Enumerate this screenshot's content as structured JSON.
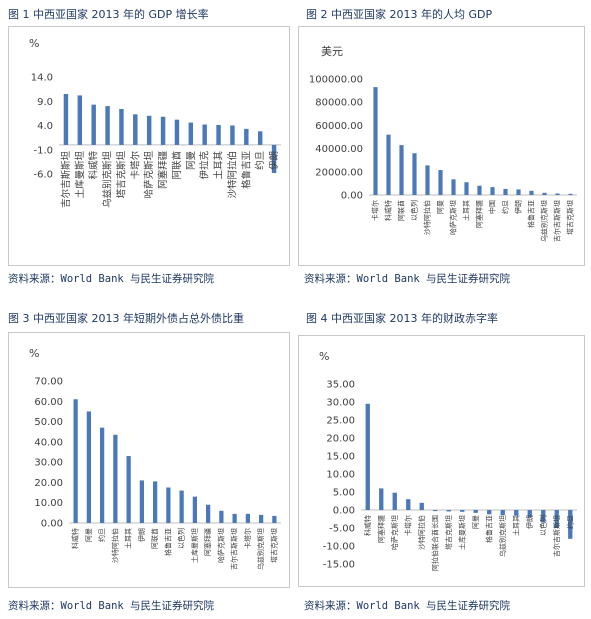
{
  "figure_titles": [
    "图 1 中西亚国家 2013 年的 GDP 增长率",
    "图 2 中西亚国家 2013 年的人均 GDP",
    "图 3 中西亚国家 2013 年短期外债占总外债比重",
    "图 4 中西亚国家 2013 年的财政赤字率"
  ],
  "sources": [
    "资料来源：World Bank 与民生证券研究院",
    "资料来源：World Bank 与民生证券研究院",
    "资料来源：World Bank 与民生证券研究院",
    "资料来源：World Bank 与民生证券研究院"
  ],
  "colors": {
    "bar": "#4a78b8",
    "axis_text": "#404040",
    "title": "#1f3864"
  },
  "chart_data": [
    {
      "type": "bar",
      "ylabel": "%",
      "ylim": [
        -6,
        14
      ],
      "yticks": [
        "14.0",
        "9.0",
        "4.0",
        "-1.0",
        "-6.0"
      ],
      "categories": [
        "吉尔吉斯斯坦",
        "土库曼斯坦",
        "科威特",
        "乌兹别克斯坦",
        "塔吉克斯坦",
        "卡塔尔",
        "哈萨克斯坦",
        "阿塞拜疆",
        "阿联酋",
        "阿曼",
        "伊拉克",
        "土耳其",
        "沙特阿拉伯",
        "格鲁吉亚",
        "约旦",
        "伊朗"
      ],
      "values": [
        10.5,
        10.2,
        8.3,
        8.0,
        7.4,
        6.3,
        6.0,
        5.8,
        5.2,
        4.6,
        4.2,
        4.1,
        4.0,
        3.3,
        2.8,
        -5.8
      ]
    },
    {
      "type": "bar",
      "ylabel": "美元",
      "ylim": [
        0,
        100000
      ],
      "yticks": [
        "100000.00",
        "80000.00",
        "60000.00",
        "40000.00",
        "20000.00",
        "0.00"
      ],
      "categories": [
        "卡塔尔",
        "科威特",
        "阿联酋",
        "以色列",
        "沙特阿拉伯",
        "阿曼",
        "哈萨克斯坦",
        "土耳其",
        "阿塞拜疆",
        "中国",
        "约旦",
        "伊朗",
        "格鲁吉亚",
        "乌兹别克斯坦",
        "吉尔吉斯斯坦",
        "塔吉克斯坦"
      ],
      "values": [
        93000,
        52000,
        43000,
        36000,
        25500,
        21500,
        13500,
        11000,
        8000,
        6800,
        5200,
        4800,
        3600,
        1900,
        1300,
        1000
      ]
    },
    {
      "type": "bar",
      "ylabel": "%",
      "ylim": [
        0,
        70
      ],
      "yticks": [
        "70.00",
        "60.00",
        "50.00",
        "40.00",
        "30.00",
        "20.00",
        "10.00",
        "0.00"
      ],
      "categories": [
        "科威特",
        "阿曼",
        "约旦",
        "沙特阿拉伯",
        "土耳其",
        "伊朗",
        "阿联酋",
        "格鲁吉亚",
        "以色列",
        "土库曼斯坦",
        "阿塞拜疆",
        "哈萨克斯坦",
        "吉尔吉斯斯坦",
        "卡塔尔",
        "乌兹别克斯坦",
        "塔吉克斯坦"
      ],
      "values": [
        61,
        55,
        47,
        43.5,
        33,
        21,
        20.5,
        17.5,
        16,
        13,
        9,
        6,
        4.5,
        4.5,
        4,
        3.5
      ]
    },
    {
      "type": "bar",
      "ylabel": "%",
      "ylim": [
        -15,
        35
      ],
      "yticks": [
        "35.00",
        "30.00",
        "25.00",
        "20.00",
        "15.00",
        "10.00",
        "5.00",
        "0.00",
        "-5.00",
        "-10.00",
        "-15.00"
      ],
      "categories": [
        "科威特",
        "阿塞拜疆",
        "哈萨克斯坦",
        "卡塔尔",
        "沙特阿拉伯",
        "阿拉伯联合酋长国",
        "塔吉克斯坦",
        "土库曼斯坦",
        "阿曼",
        "格鲁吉亚",
        "乌兹别克斯坦",
        "土耳其",
        "伊朗",
        "以色列",
        "吉尔吉斯斯坦",
        "约旦"
      ],
      "values": [
        29.5,
        6,
        4.8,
        3,
        2,
        -0.3,
        -0.4,
        -0.5,
        -0.8,
        -1.2,
        -1.4,
        -1.6,
        -2,
        -3.5,
        -5,
        -8
      ]
    }
  ]
}
